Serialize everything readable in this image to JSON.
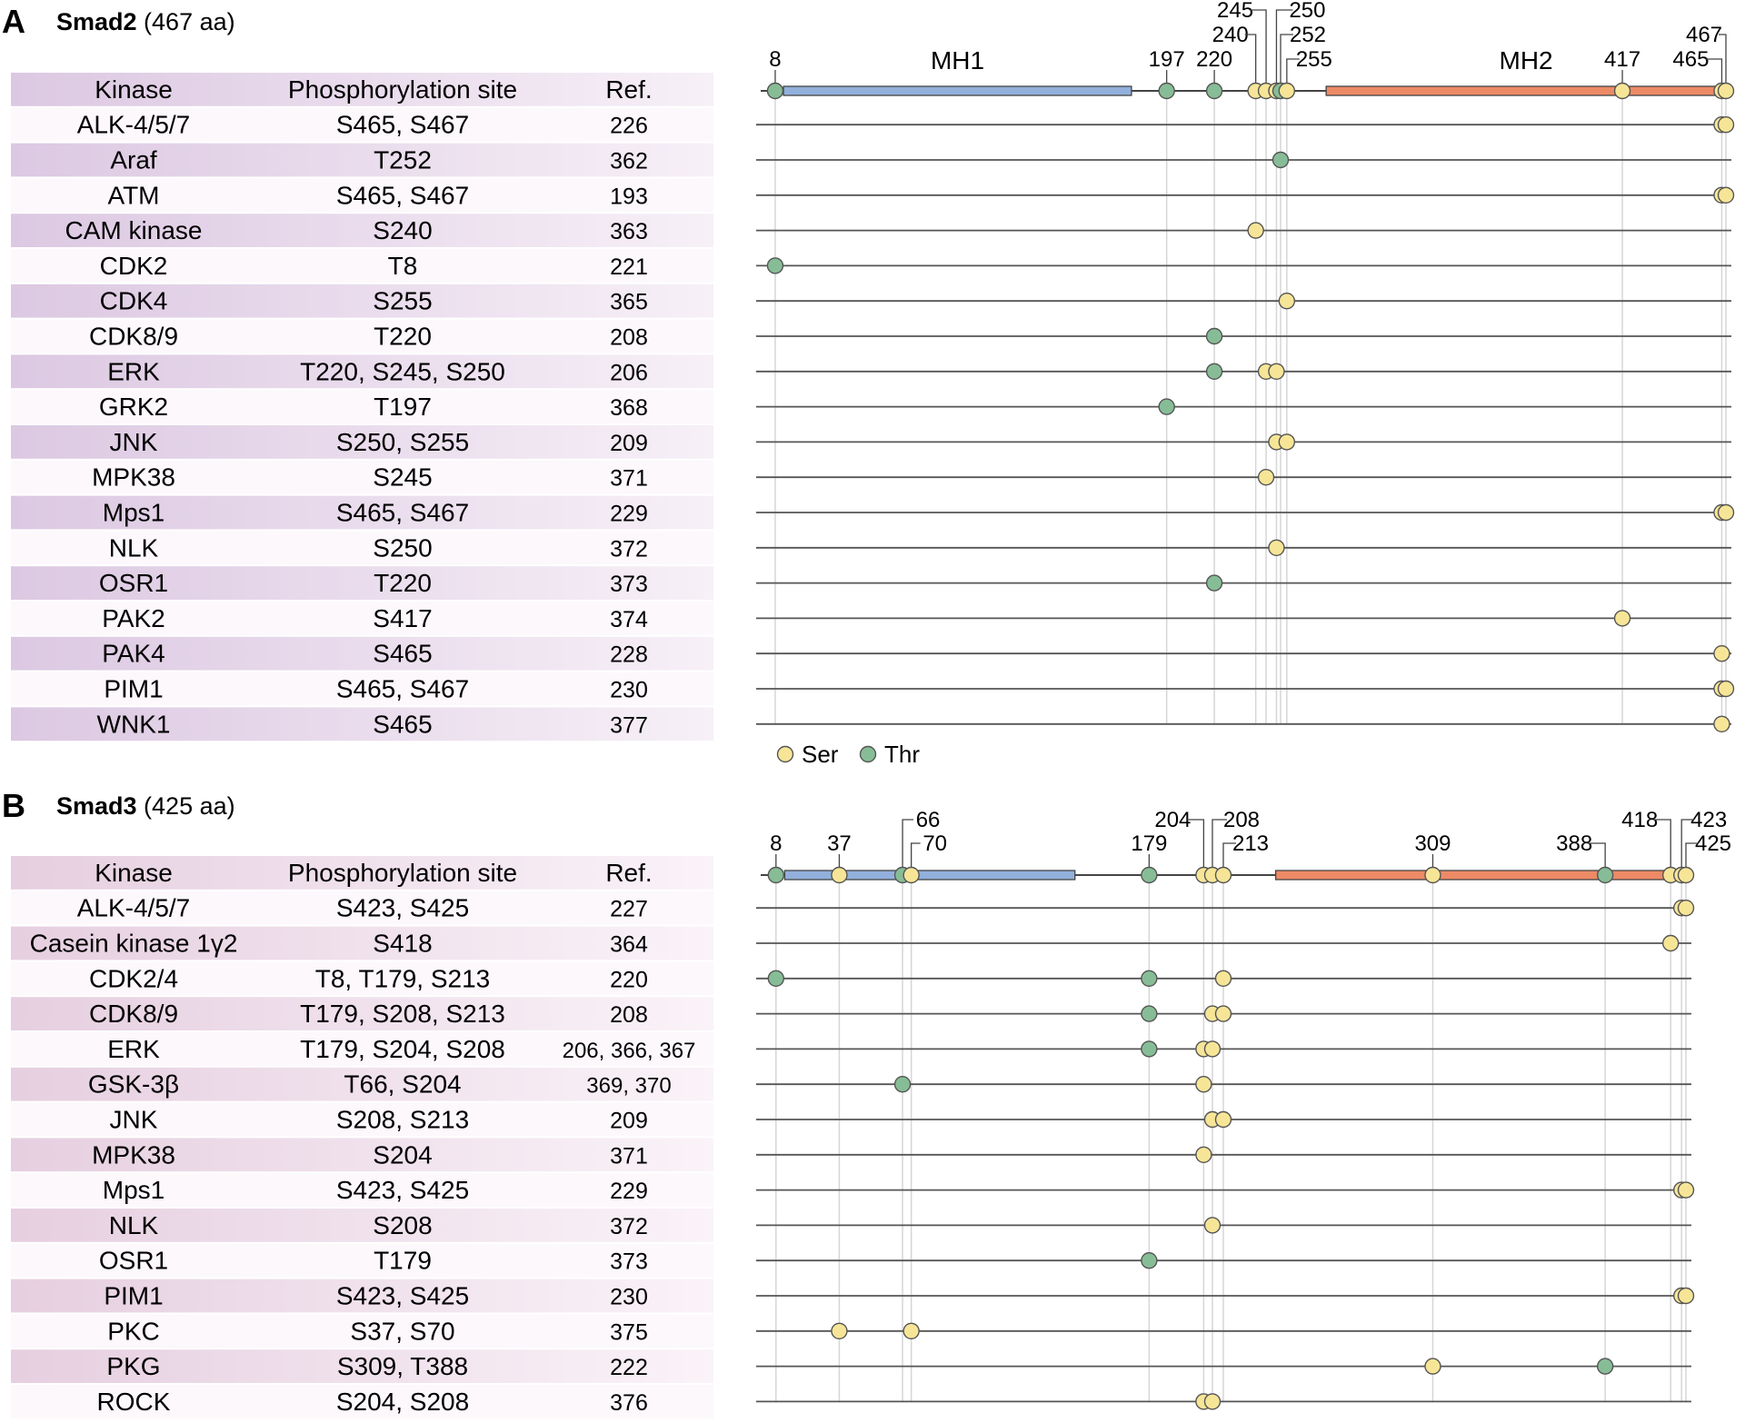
{
  "legend": {
    "ser_label": "Ser",
    "thr_label": "Thr",
    "ser_color": "#f7e597",
    "thr_color": "#87bd96"
  },
  "colors": {
    "mh1": "#92b0dc",
    "mh2": "#ed8a66",
    "stripe_a": "#efe6f1",
    "stripe_b": "#fcf8fc",
    "stripe_b_header": "#f3e6ef"
  },
  "panels": [
    {
      "letter": "A",
      "protein": "Smad2",
      "length_text": "(467 aa)",
      "length": 467,
      "domains": [
        {
          "label": "MH1",
          "start": 12,
          "end": 180,
          "type": "mh1"
        },
        {
          "label": "MH2",
          "start": 274,
          "end": 467,
          "type": "mh2"
        }
      ],
      "headers": {
        "kinase": "Kinase",
        "site": "Phosphorylation site",
        "ref": "Ref."
      },
      "site_labels": [
        {
          "text": "8",
          "pos": 8
        },
        {
          "text": "197",
          "pos": 197
        },
        {
          "text": "220",
          "pos": 220
        },
        {
          "text": "240",
          "pos": 240
        },
        {
          "text": "245",
          "pos": 245
        },
        {
          "text": "250",
          "pos": 250
        },
        {
          "text": "252",
          "pos": 252
        },
        {
          "text": "255",
          "pos": 255
        },
        {
          "text": "417",
          "pos": 417
        },
        {
          "text": "465",
          "pos": 465
        },
        {
          "text": "467",
          "pos": 467
        }
      ],
      "rows": [
        {
          "kinase": "ALK-4/5/7",
          "site": "S465, S467",
          "ref": "226",
          "marks": [
            {
              "pos": 465,
              "type": "S"
            },
            {
              "pos": 467,
              "type": "S"
            }
          ]
        },
        {
          "kinase": "Araf",
          "site": "T252",
          "ref": "362",
          "marks": [
            {
              "pos": 252,
              "type": "T"
            }
          ]
        },
        {
          "kinase": "ATM",
          "site": "S465, S467",
          "ref": "193",
          "marks": [
            {
              "pos": 465,
              "type": "S"
            },
            {
              "pos": 467,
              "type": "S"
            }
          ]
        },
        {
          "kinase": "CAM kinase",
          "site": "S240",
          "ref": "363",
          "marks": [
            {
              "pos": 240,
              "type": "S"
            }
          ]
        },
        {
          "kinase": "CDK2",
          "site": "T8",
          "ref": "221",
          "marks": [
            {
              "pos": 8,
              "type": "T"
            }
          ]
        },
        {
          "kinase": "CDK4",
          "site": "S255",
          "ref": "365",
          "marks": [
            {
              "pos": 255,
              "type": "S"
            }
          ]
        },
        {
          "kinase": "CDK8/9",
          "site": "T220",
          "ref": "208",
          "marks": [
            {
              "pos": 220,
              "type": "T"
            }
          ]
        },
        {
          "kinase": "ERK",
          "site": "T220, S245, S250",
          "ref": "206",
          "marks": [
            {
              "pos": 220,
              "type": "T"
            },
            {
              "pos": 245,
              "type": "S"
            },
            {
              "pos": 250,
              "type": "S"
            }
          ]
        },
        {
          "kinase": "GRK2",
          "site": "T197",
          "ref": "368",
          "marks": [
            {
              "pos": 197,
              "type": "T"
            }
          ]
        },
        {
          "kinase": "JNK",
          "site": "S250, S255",
          "ref": "209",
          "marks": [
            {
              "pos": 250,
              "type": "S"
            },
            {
              "pos": 255,
              "type": "S"
            }
          ]
        },
        {
          "kinase": "MPK38",
          "site": "S245",
          "ref": "371",
          "marks": [
            {
              "pos": 245,
              "type": "S"
            }
          ]
        },
        {
          "kinase": "Mps1",
          "site": "S465, S467",
          "ref": "229",
          "marks": [
            {
              "pos": 465,
              "type": "S"
            },
            {
              "pos": 467,
              "type": "S"
            }
          ]
        },
        {
          "kinase": "NLK",
          "site": "S250",
          "ref": "372",
          "marks": [
            {
              "pos": 250,
              "type": "S"
            }
          ]
        },
        {
          "kinase": "OSR1",
          "site": "T220",
          "ref": "373",
          "marks": [
            {
              "pos": 220,
              "type": "T"
            }
          ]
        },
        {
          "kinase": "PAK2",
          "site": "S417",
          "ref": "374",
          "marks": [
            {
              "pos": 417,
              "type": "S"
            }
          ]
        },
        {
          "kinase": "PAK4",
          "site": "S465",
          "ref": "228",
          "marks": [
            {
              "pos": 465,
              "type": "S"
            }
          ]
        },
        {
          "kinase": "PIM1",
          "site": "S465, S467",
          "ref": "230",
          "marks": [
            {
              "pos": 465,
              "type": "S"
            },
            {
              "pos": 467,
              "type": "S"
            }
          ]
        },
        {
          "kinase": "WNK1",
          "site": "S465",
          "ref": "377",
          "marks": [
            {
              "pos": 465,
              "type": "S"
            }
          ]
        }
      ]
    },
    {
      "letter": "B",
      "protein": "Smad3",
      "length_text": "(425 aa)",
      "length": 425,
      "domains": [
        {
          "label": "",
          "start": 12,
          "end": 145,
          "type": "mh1"
        },
        {
          "label": "",
          "start": 237,
          "end": 423,
          "type": "mh2"
        }
      ],
      "headers": {
        "kinase": "Kinase",
        "site": "Phosphorylation site",
        "ref": "Ref."
      },
      "site_labels": [
        {
          "text": "8",
          "pos": 8
        },
        {
          "text": "37",
          "pos": 37
        },
        {
          "text": "66",
          "pos": 66
        },
        {
          "text": "70",
          "pos": 70
        },
        {
          "text": "179",
          "pos": 179
        },
        {
          "text": "204",
          "pos": 204
        },
        {
          "text": "208",
          "pos": 208
        },
        {
          "text": "213",
          "pos": 213
        },
        {
          "text": "309",
          "pos": 309
        },
        {
          "text": "388",
          "pos": 388
        },
        {
          "text": "418",
          "pos": 418
        },
        {
          "text": "423",
          "pos": 423
        },
        {
          "text": "425",
          "pos": 425
        }
      ],
      "rows": [
        {
          "kinase": "ALK-4/5/7",
          "site": "S423, S425",
          "ref": "227",
          "marks": [
            {
              "pos": 423,
              "type": "S"
            },
            {
              "pos": 425,
              "type": "S"
            }
          ]
        },
        {
          "kinase": "Casein kinase 1γ2",
          "site": "S418",
          "ref": "364",
          "marks": [
            {
              "pos": 418,
              "type": "S"
            }
          ]
        },
        {
          "kinase": "CDK2/4",
          "site": "T8, T179, S213",
          "ref": "220",
          "marks": [
            {
              "pos": 8,
              "type": "T"
            },
            {
              "pos": 179,
              "type": "T"
            },
            {
              "pos": 213,
              "type": "S"
            }
          ]
        },
        {
          "kinase": "CDK8/9",
          "site": "T179, S208, S213",
          "ref": "208",
          "marks": [
            {
              "pos": 179,
              "type": "T"
            },
            {
              "pos": 208,
              "type": "S"
            },
            {
              "pos": 213,
              "type": "S"
            }
          ]
        },
        {
          "kinase": "ERK",
          "site": "T179, S204, S208",
          "ref": "206, 366, 367",
          "marks": [
            {
              "pos": 179,
              "type": "T"
            },
            {
              "pos": 204,
              "type": "S"
            },
            {
              "pos": 208,
              "type": "S"
            }
          ]
        },
        {
          "kinase": "GSK-3β",
          "site": "T66, S204",
          "ref": "369, 370",
          "marks": [
            {
              "pos": 66,
              "type": "T"
            },
            {
              "pos": 204,
              "type": "S"
            }
          ]
        },
        {
          "kinase": "JNK",
          "site": "S208, S213",
          "ref": "209",
          "marks": [
            {
              "pos": 208,
              "type": "S"
            },
            {
              "pos": 213,
              "type": "S"
            }
          ]
        },
        {
          "kinase": "MPK38",
          "site": "S204",
          "ref": "371",
          "marks": [
            {
              "pos": 204,
              "type": "S"
            }
          ]
        },
        {
          "kinase": "Mps1",
          "site": "S423, S425",
          "ref": "229",
          "marks": [
            {
              "pos": 423,
              "type": "S"
            },
            {
              "pos": 425,
              "type": "S"
            }
          ]
        },
        {
          "kinase": "NLK",
          "site": "S208",
          "ref": "372",
          "marks": [
            {
              "pos": 208,
              "type": "S"
            }
          ]
        },
        {
          "kinase": "OSR1",
          "site": "T179",
          "ref": "373",
          "marks": [
            {
              "pos": 179,
              "type": "T"
            }
          ]
        },
        {
          "kinase": "PIM1",
          "site": "S423, S425",
          "ref": "230",
          "marks": [
            {
              "pos": 423,
              "type": "S"
            },
            {
              "pos": 425,
              "type": "S"
            }
          ]
        },
        {
          "kinase": "PKC",
          "site": "S37, S70",
          "ref": "375",
          "marks": [
            {
              "pos": 37,
              "type": "S"
            },
            {
              "pos": 70,
              "type": "S"
            }
          ]
        },
        {
          "kinase": "PKG",
          "site": "S309, T388",
          "ref": "222",
          "marks": [
            {
              "pos": 309,
              "type": "S"
            },
            {
              "pos": 388,
              "type": "T"
            }
          ]
        },
        {
          "kinase": "ROCK",
          "site": "S204, S208",
          "ref": "376",
          "marks": [
            {
              "pos": 204,
              "type": "S"
            },
            {
              "pos": 208,
              "type": "S"
            }
          ]
        }
      ]
    }
  ]
}
